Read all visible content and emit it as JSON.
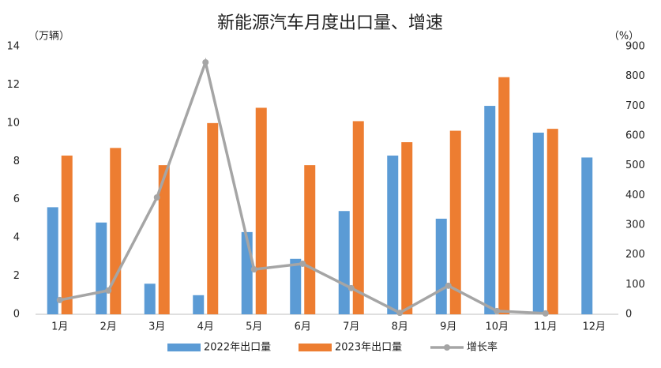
{
  "chart_data": {
    "type": "bar-line",
    "title": "新能源汽车月度出口量、增速",
    "y_label": "（万辆）",
    "y2_label": "（%）",
    "categories": [
      "1月",
      "2月",
      "3月",
      "4月",
      "5月",
      "6月",
      "7月",
      "8月",
      "9月",
      "10月",
      "11月",
      "12月"
    ],
    "series": [
      {
        "name": "2022年出口量",
        "type": "bar",
        "color": "#5b9bd5",
        "values": [
          5.6,
          4.8,
          1.6,
          1.0,
          4.3,
          2.9,
          5.4,
          8.3,
          5.0,
          10.9,
          9.5,
          8.2
        ]
      },
      {
        "name": "2023年出口量",
        "type": "bar",
        "color": "#ed7d31",
        "values": [
          8.3,
          8.7,
          7.8,
          10.0,
          10.8,
          7.8,
          10.1,
          9.0,
          9.6,
          12.4,
          9.7,
          null
        ]
      },
      {
        "name": "增长率",
        "type": "line",
        "axis": "y2",
        "color": "#a5a5a5",
        "values": [
          48,
          80,
          393,
          847,
          151,
          170,
          88,
          5,
          96,
          11,
          3,
          null
        ]
      }
    ],
    "ylim": [
      0,
      14
    ],
    "yticks": [
      0,
      2,
      4,
      6,
      8,
      10,
      12,
      14
    ],
    "y2lim": [
      0,
      900
    ],
    "y2ticks": [
      0,
      100,
      200,
      300,
      400,
      500,
      600,
      700,
      800,
      900
    ],
    "grid": false,
    "legend": "bottom"
  }
}
